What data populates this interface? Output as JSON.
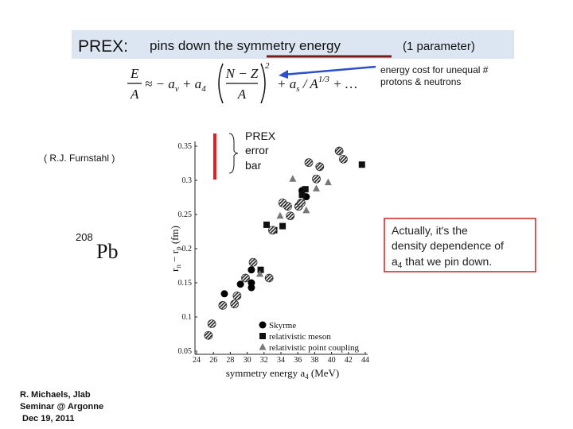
{
  "slide": {
    "title": {
      "label": "PREX:",
      "text": "pins down the symmetry energy",
      "note": "(1 parameter)"
    },
    "formula": {
      "lhs_num": "E",
      "lhs_den": "A",
      "terms1": "≈ − a",
      "sub_v": "v",
      "plus_a": " + a",
      "sub_4": "4",
      "frac_num": "N − Z",
      "frac_den": "A",
      "power": "2",
      "terms2": "+ a",
      "sub_s": "s",
      "over_a": " / A",
      "power_13": "1/3",
      "tail": " + …"
    },
    "energy_note": [
      "energy cost for unequal #",
      "protons & neutrons"
    ],
    "prex_note": [
      "PREX",
      "error",
      "bar"
    ],
    "credit": "( R.J. Furnstahl )",
    "nucleus": {
      "mass": "208",
      "symbol": "Pb"
    },
    "callout": {
      "line1": "Actually, it's the",
      "line2": "density dependence of",
      "a": "a",
      "sub": "4",
      "rest": " that we pin down."
    },
    "footer": [
      "R. Michaels, Jlab",
      "Seminar @ Argonne",
      "Dec 19, 2011"
    ]
  },
  "chart_data": {
    "type": "scatter",
    "xlabel": {
      "text": "symmetry energy a",
      "sub": "4",
      "unit": " (MeV)"
    },
    "ylabel": {
      "r": "r",
      "n": "n",
      "minus": " − r",
      "p": "p",
      "unit": " (fm)"
    },
    "xlim": [
      24,
      44
    ],
    "xticks": [
      24,
      26,
      28,
      30,
      32,
      34,
      36,
      38,
      40,
      42,
      44
    ],
    "ylim": [
      0.05,
      0.35
    ],
    "yticks": [
      0.05,
      0.1,
      0.15,
      0.2,
      0.25,
      0.3,
      0.35
    ],
    "series": [
      {
        "name": "Skyrme",
        "marker": "circle",
        "color": "#000000",
        "x": [
          27.3,
          29.2,
          30.5,
          30.5,
          30.5,
          37.0,
          36.5
        ],
        "values": [
          0.134,
          0.148,
          0.169,
          0.15,
          0.143,
          0.276,
          0.285
        ]
      },
      {
        "name": "relativistic meson",
        "marker": "square",
        "color": "#111111",
        "x": [
          32.3,
          36.5,
          36.9,
          43.6,
          31.6,
          33.2,
          34.2
        ],
        "values": [
          0.235,
          0.279,
          0.287,
          0.323,
          0.169,
          0.227,
          0.233
        ]
      },
      {
        "name": "relativistic point coupling",
        "marker": "triangle",
        "color": "#777777",
        "x": [
          31.5,
          35.4,
          39.6,
          37.0,
          33.9,
          38.2
        ],
        "values": [
          0.163,
          0.302,
          0.297,
          0.256,
          0.248,
          0.288
        ]
      },
      {
        "marker": "hatched",
        "color": "#333333",
        "x": [
          25.4,
          25.8,
          27.1,
          28.5,
          28.8,
          29.8,
          30.7,
          32.6,
          33.0,
          34.8,
          35.1,
          36.1,
          36.4,
          37.3,
          38.2,
          38.6,
          40.9,
          41.4,
          34.2
        ],
        "values": [
          0.073,
          0.09,
          0.117,
          0.119,
          0.131,
          0.157,
          0.18,
          0.157,
          0.227,
          0.262,
          0.248,
          0.262,
          0.267,
          0.326,
          0.302,
          0.32,
          0.343,
          0.331,
          0.267
        ]
      }
    ]
  }
}
